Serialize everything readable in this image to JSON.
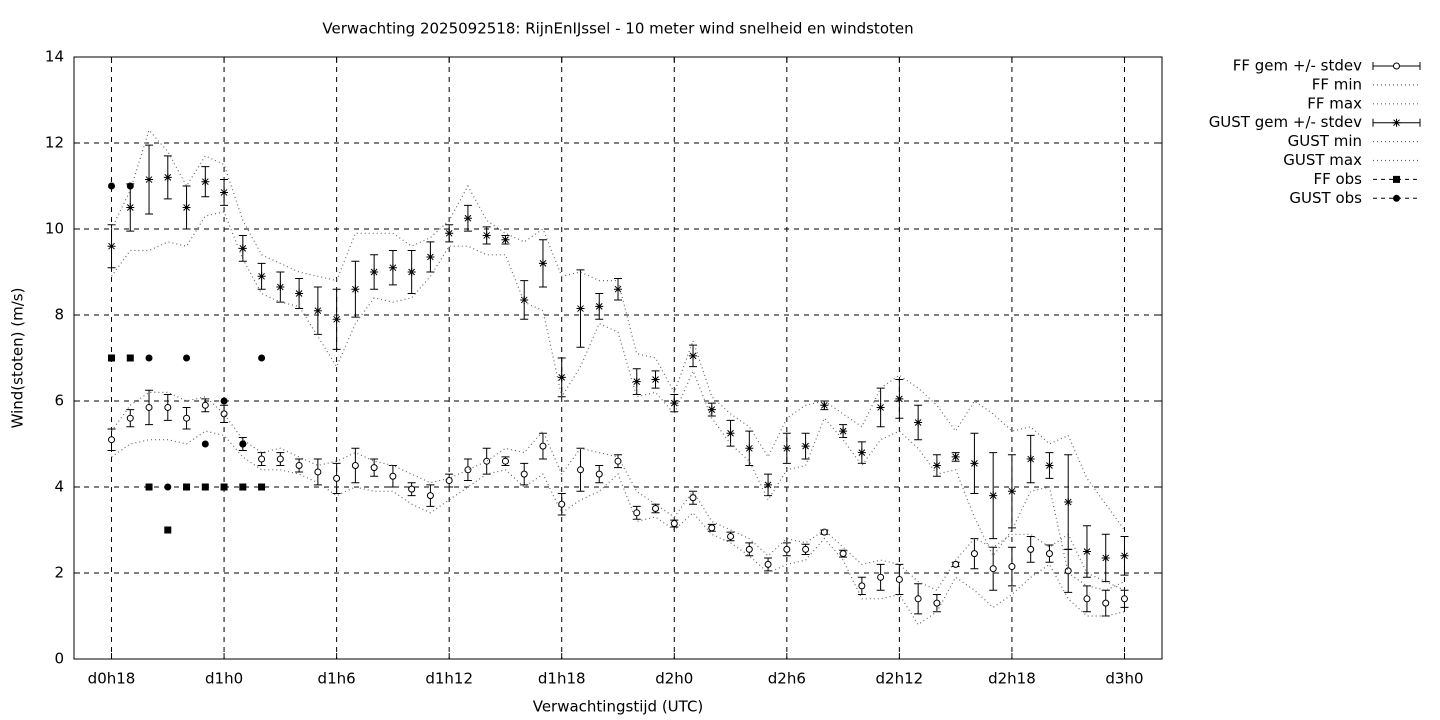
{
  "chart_data": {
    "type": "errorbar",
    "title": "Verwachting 2025092518: RijnEnIJssel - 10 meter wind snelheid en windstoten",
    "x_label": "Verwachtingstijd (UTC)",
    "y_label": "Wind(stoten) (m/s)",
    "xlim": [
      16,
      74
    ],
    "ylim": [
      0,
      14
    ],
    "yticks": [
      0,
      2,
      4,
      6,
      8,
      10,
      12,
      14
    ],
    "xticks": [
      {
        "value": 18,
        "label": "d0h18"
      },
      {
        "value": 24,
        "label": "d1h0"
      },
      {
        "value": 30,
        "label": "d1h6"
      },
      {
        "value": 36,
        "label": "d1h12"
      },
      {
        "value": 42,
        "label": "d1h18"
      },
      {
        "value": 48,
        "label": "d2h0"
      },
      {
        "value": 54,
        "label": "d2h6"
      },
      {
        "value": 60,
        "label": "d2h12"
      },
      {
        "value": 66,
        "label": "d2h18"
      },
      {
        "value": 72,
        "label": "d3h0"
      }
    ],
    "grid": true,
    "legend": "outside-top-right",
    "x": [
      18,
      19,
      20,
      21,
      22,
      23,
      24,
      25,
      26,
      27,
      28,
      29,
      30,
      31,
      32,
      33,
      34,
      35,
      36,
      37,
      38,
      39,
      40,
      41,
      42,
      43,
      44,
      45,
      46,
      47,
      48,
      49,
      50,
      51,
      52,
      53,
      54,
      55,
      56,
      57,
      58,
      59,
      60,
      61,
      62,
      63,
      64,
      65,
      66,
      67,
      68,
      69,
      70,
      71,
      72
    ],
    "series": [
      {
        "name": "FF gem +/- stdev",
        "kind": "errorbar",
        "marker": "circle",
        "color": "#000000",
        "values": [
          5.1,
          5.6,
          5.85,
          5.85,
          5.6,
          5.9,
          5.7,
          5.0,
          4.65,
          4.65,
          4.5,
          4.35,
          4.2,
          4.5,
          4.45,
          4.25,
          3.95,
          3.8,
          4.15,
          4.4,
          4.6,
          4.6,
          4.3,
          4.95,
          3.6,
          4.4,
          4.3,
          4.6,
          3.4,
          3.5,
          3.15,
          3.75,
          3.05,
          2.85,
          2.55,
          2.2,
          2.55,
          2.55,
          2.95,
          2.45,
          1.7,
          1.9,
          1.85,
          1.4,
          1.3,
          2.2,
          2.45,
          2.1,
          2.15,
          2.55,
          2.45,
          2.05,
          1.4,
          1.3,
          1.4
        ],
        "errors": [
          0.25,
          0.2,
          0.4,
          0.3,
          0.25,
          0.15,
          0.2,
          0.15,
          0.15,
          0.15,
          0.15,
          0.3,
          0.35,
          0.4,
          0.2,
          0.25,
          0.15,
          0.25,
          0.15,
          0.25,
          0.3,
          0.1,
          0.25,
          0.3,
          0.25,
          0.5,
          0.2,
          0.15,
          0.15,
          0.1,
          0.08,
          0.15,
          0.08,
          0.1,
          0.15,
          0.15,
          0.15,
          0.12,
          0.05,
          0.08,
          0.2,
          0.3,
          0.35,
          0.35,
          0.2,
          0.05,
          0.35,
          0.5,
          0.45,
          0.3,
          0.2,
          0.5,
          0.3,
          0.3,
          0.2
        ]
      },
      {
        "name": "FF min",
        "kind": "line",
        "dash": "dotted",
        "color": "#666666",
        "values": [
          4.7,
          5.0,
          5.1,
          5.1,
          5.0,
          5.3,
          5.2,
          4.7,
          4.4,
          4.4,
          4.3,
          4.1,
          3.8,
          4.0,
          3.9,
          3.9,
          3.6,
          3.4,
          3.7,
          4.0,
          4.3,
          4.4,
          4.0,
          4.3,
          3.4,
          3.7,
          3.9,
          4.3,
          3.2,
          3.3,
          3.0,
          3.4,
          2.9,
          2.7,
          2.4,
          2.0,
          2.2,
          2.3,
          2.8,
          2.3,
          1.4,
          1.4,
          1.5,
          0.8,
          1.1,
          1.9,
          1.6,
          1.2,
          1.5,
          1.9,
          2.2,
          1.4,
          1.0,
          1.0,
          1.1
        ]
      },
      {
        "name": "FF max",
        "kind": "line",
        "dash": "dotted",
        "color": "#666666",
        "values": [
          5.3,
          5.9,
          6.2,
          6.2,
          6.0,
          6.1,
          5.7,
          5.1,
          4.8,
          4.9,
          4.7,
          4.5,
          4.6,
          4.8,
          4.6,
          4.5,
          4.3,
          4.1,
          4.2,
          4.4,
          4.6,
          4.9,
          4.8,
          5.3,
          4.3,
          4.9,
          4.8,
          4.7,
          3.9,
          3.6,
          3.3,
          3.9,
          3.2,
          3.0,
          2.8,
          2.4,
          2.8,
          2.7,
          3.0,
          2.6,
          2.2,
          2.3,
          2.2,
          1.8,
          1.6,
          2.3,
          2.8,
          2.6,
          2.9,
          2.9,
          2.6,
          2.9,
          2.0,
          1.8,
          1.6
        ]
      },
      {
        "name": "GUST gem +/- stdev",
        "kind": "errorbar",
        "marker": "star",
        "color": "#000000",
        "values": [
          9.6,
          10.5,
          11.15,
          11.2,
          10.5,
          11.1,
          10.85,
          9.55,
          8.9,
          8.65,
          8.5,
          8.1,
          7.9,
          8.6,
          9.0,
          9.1,
          9.0,
          9.35,
          9.9,
          10.25,
          9.85,
          9.75,
          8.35,
          9.2,
          6.55,
          8.15,
          8.2,
          8.6,
          6.45,
          6.5,
          5.95,
          7.05,
          5.8,
          5.25,
          4.9,
          4.05,
          4.9,
          4.95,
          5.9,
          5.3,
          4.8,
          5.85,
          6.05,
          5.5,
          4.5,
          4.7,
          4.55,
          3.8,
          3.9,
          4.65,
          4.5,
          3.65,
          2.5,
          2.35,
          2.4
        ],
        "errors": [
          0.5,
          0.55,
          0.8,
          0.5,
          0.5,
          0.35,
          0.3,
          0.3,
          0.3,
          0.35,
          0.35,
          0.55,
          0.7,
          0.65,
          0.4,
          0.4,
          0.5,
          0.35,
          0.2,
          0.3,
          0.2,
          0.1,
          0.45,
          0.55,
          0.45,
          0.9,
          0.3,
          0.25,
          0.3,
          0.2,
          0.2,
          0.25,
          0.15,
          0.3,
          0.4,
          0.25,
          0.35,
          0.3,
          0.1,
          0.15,
          0.25,
          0.45,
          0.45,
          0.4,
          0.25,
          0.1,
          0.7,
          1.0,
          0.85,
          0.55,
          0.3,
          1.1,
          0.6,
          0.55,
          0.45
        ]
      },
      {
        "name": "GUST min",
        "kind": "line",
        "dash": "dotted",
        "color": "#666666",
        "values": [
          8.9,
          9.5,
          9.5,
          9.7,
          9.6,
          10.3,
          10.4,
          9.3,
          8.5,
          8.3,
          8.2,
          7.5,
          6.8,
          7.8,
          8.4,
          8.3,
          8.4,
          8.9,
          9.6,
          9.6,
          9.4,
          9.4,
          8.3,
          8.1,
          6.1,
          6.8,
          7.8,
          7.6,
          6.1,
          6.2,
          5.7,
          6.7,
          5.6,
          5.0,
          4.6,
          3.7,
          4.4,
          4.5,
          5.6,
          5.1,
          4.5,
          5.1,
          5.3,
          4.9,
          4.3,
          4.4,
          3.3,
          2.4,
          3.0,
          3.9,
          4.0,
          2.0,
          1.7,
          1.6,
          1.8
        ]
      },
      {
        "name": "GUST max",
        "kind": "line",
        "dash": "dotted",
        "color": "#666666",
        "values": [
          10.0,
          10.9,
          12.3,
          11.8,
          11.0,
          11.7,
          11.5,
          10.2,
          9.4,
          9.2,
          9.0,
          8.9,
          8.8,
          9.9,
          9.9,
          9.9,
          9.6,
          9.8,
          10.2,
          11.0,
          10.2,
          9.9,
          9.7,
          10.0,
          8.9,
          9.0,
          8.8,
          8.8,
          7.1,
          7.0,
          6.2,
          7.4,
          6.1,
          5.7,
          5.4,
          4.7,
          5.6,
          5.9,
          6.0,
          5.7,
          5.4,
          6.3,
          6.6,
          6.3,
          5.9,
          5.3,
          6.0,
          5.7,
          5.3,
          5.4,
          5.0,
          5.2,
          4.2,
          3.6,
          3.0
        ]
      },
      {
        "name": "FF obs",
        "kind": "points",
        "marker": "square",
        "color": "#000000",
        "x": [
          18,
          19,
          20,
          21,
          22,
          23,
          24,
          25,
          26
        ],
        "values": [
          7,
          7,
          4,
          3,
          4,
          4,
          4,
          4,
          4
        ]
      },
      {
        "name": "GUST obs",
        "kind": "points",
        "marker": "dot",
        "color": "#000000",
        "x": [
          18,
          19,
          20,
          21,
          22,
          23,
          24,
          25,
          26
        ],
        "values": [
          11,
          11,
          7,
          4,
          7,
          5,
          6,
          5,
          7
        ]
      }
    ]
  }
}
